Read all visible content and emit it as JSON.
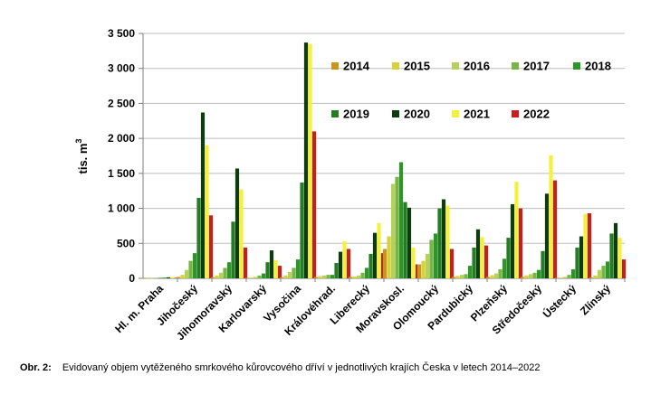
{
  "chart_data": {
    "type": "bar",
    "ylabel_main": "tis. m",
    "ylabel_sup": "3",
    "ylim": [
      0,
      3500
    ],
    "yticks": [
      0,
      500,
      1000,
      1500,
      2000,
      2500,
      3000,
      3500
    ],
    "ytick_labels": [
      "0",
      "500",
      "1 000",
      "1 500",
      "2 000",
      "2 500",
      "3 000",
      "3 500"
    ],
    "grid": true,
    "legend_position": "top-right",
    "categories": [
      "Hl. m. Praha",
      "Jihočeský",
      "Jihomoravský",
      "Karlovarský",
      "Vysočina",
      "Královéhrad.",
      "Liberecký",
      "Moravskosl.",
      "Olomoucký",
      "Pardubický",
      "Plzeňský",
      "Středočeský",
      "Ústecký",
      "Zlínský"
    ],
    "series": [
      {
        "name": "2014",
        "color": "#c8961e",
        "values": [
          2,
          20,
          15,
          8,
          15,
          20,
          20,
          420,
          200,
          20,
          20,
          20,
          8,
          15
        ]
      },
      {
        "name": "2015",
        "color": "#d7d23c",
        "values": [
          3,
          50,
          40,
          10,
          40,
          30,
          25,
          600,
          250,
          35,
          45,
          40,
          10,
          40
        ]
      },
      {
        "name": "2016",
        "color": "#b4d25a",
        "values": [
          4,
          120,
          80,
          20,
          90,
          40,
          40,
          1350,
          350,
          50,
          70,
          60,
          20,
          120
        ]
      },
      {
        "name": "2017",
        "color": "#78b446",
        "values": [
          5,
          250,
          150,
          40,
          150,
          50,
          80,
          1450,
          550,
          60,
          130,
          80,
          50,
          180
        ]
      },
      {
        "name": "2018",
        "color": "#2d9628",
        "values": [
          8,
          360,
          230,
          70,
          270,
          50,
          150,
          1660,
          640,
          180,
          280,
          120,
          130,
          240
        ]
      },
      {
        "name": "2019",
        "color": "#237d23",
        "values": [
          10,
          1150,
          810,
          230,
          1370,
          220,
          350,
          1090,
          1000,
          440,
          580,
          390,
          440,
          640
        ]
      },
      {
        "name": "2020",
        "color": "#0f3c0f",
        "values": [
          15,
          2370,
          1570,
          400,
          3370,
          380,
          650,
          1010,
          1130,
          700,
          1060,
          1210,
          600,
          790
        ]
      },
      {
        "name": "2021",
        "color": "#f5f03c",
        "values": [
          20,
          1900,
          1270,
          260,
          3350,
          530,
          790,
          440,
          1040,
          590,
          1380,
          1760,
          920,
          580
        ]
      },
      {
        "name": "2022",
        "color": "#c81e1e",
        "values": [
          8,
          900,
          440,
          180,
          2100,
          420,
          360,
          200,
          420,
          470,
          1000,
          1400,
          930,
          270
        ]
      }
    ]
  },
  "caption": {
    "number": "Obr. 2:",
    "text": "Evidovaný objem vytěženého smrkového kůrovcového dříví v jednotlivých krajích Česka v letech 2014–2022"
  }
}
